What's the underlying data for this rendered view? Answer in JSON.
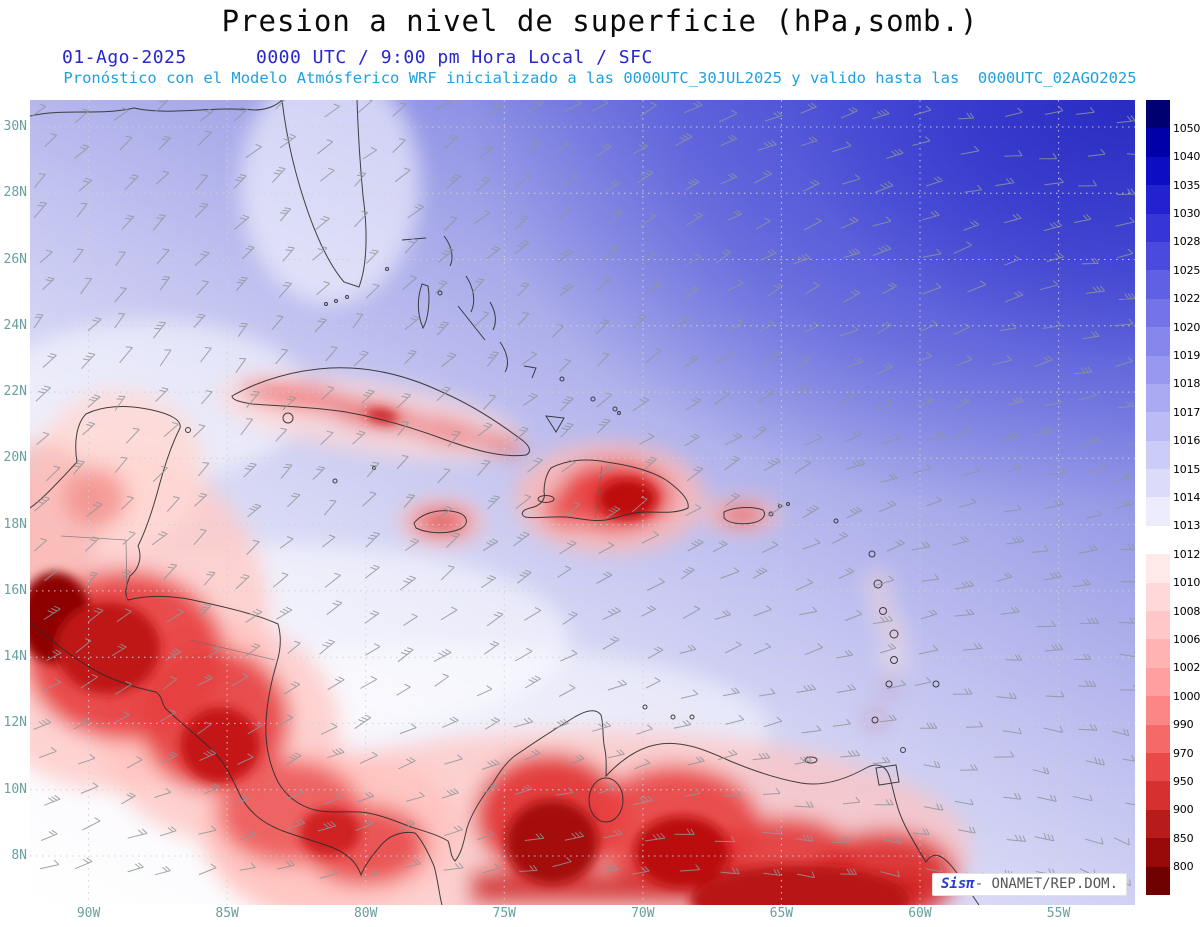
{
  "header": {
    "title": "Presion a nivel de superficie (hPa,somb.)",
    "date": "01-Ago-2025",
    "time_line": "0000 UTC / 9:00 pm Hora Local / SFC",
    "model_line": "Pronóstico con el Modelo Atmósferico WRF inicializado a las 0000UTC_30JUL2025 y valido hasta las  0000UTC_02AGO2025"
  },
  "map": {
    "lat_labels": [
      "30N",
      "28N",
      "26N",
      "24N",
      "22N",
      "20N",
      "18N",
      "16N",
      "14N",
      "12N",
      "10N",
      "8N"
    ],
    "lon_labels": [
      "90W",
      "85W",
      "80W",
      "75W",
      "70W",
      "65W",
      "60W",
      "55W"
    ]
  },
  "colorbar": {
    "unit": "hPa",
    "tick_labels": [
      "1050",
      "1040",
      "1035",
      "1030",
      "1028",
      "1025",
      "1022",
      "1020",
      "1019",
      "1018",
      "1017",
      "1016",
      "1015",
      "1014",
      "1013",
      "1012",
      "1010",
      "1008",
      "1006",
      "1002",
      "1000",
      "990",
      "970",
      "950",
      "900",
      "850",
      "800"
    ],
    "cell_colors": [
      "#000070",
      "#0000a8",
      "#0d0dc4",
      "#2222d0",
      "#3636d8",
      "#4a4ade",
      "#6060e4",
      "#7474e8",
      "#8686ec",
      "#9898f0",
      "#aaaaf3",
      "#bbbbf6",
      "#ccccf8",
      "#dcdcfa",
      "#ececfd",
      "#ffffff",
      "#ffe9e9",
      "#ffd9d9",
      "#ffc7c7",
      "#ffb3b3",
      "#ff9f9f",
      "#fb8686",
      "#f56969",
      "#ea4949",
      "#d63030",
      "#b81b1b",
      "#970909",
      "#6e0000"
    ]
  },
  "watermark": {
    "brand": "Sisπ",
    "org": "- ONAMET/REP.DOM."
  },
  "colors": {
    "date_line": "#2727cd",
    "model_line": "#21a0e0",
    "axis_labels": "#6a9f9f",
    "high_pressure": "#2527be",
    "low_pressure": "#8d0404",
    "wind_barbs": "#8f959b"
  }
}
